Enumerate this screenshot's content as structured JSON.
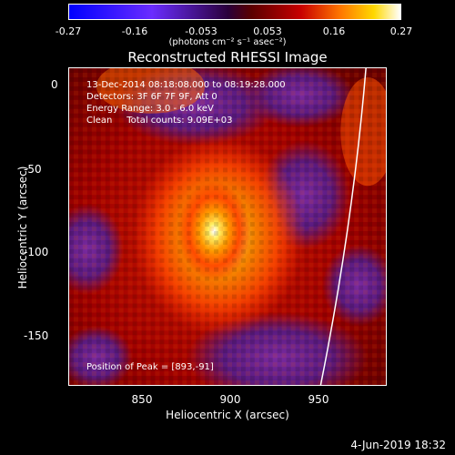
{
  "colorbar": {
    "ticks": [
      "-0.27",
      "-0.16",
      "-0.053",
      "0.053",
      "0.16",
      "0.27"
    ],
    "units": "(photons cm⁻² s⁻¹ asec⁻²)"
  },
  "title": "Reconstructed RHESSI Image",
  "info": {
    "time": "13-Dec-2014 08:18:08.000 to 08:19:28.000",
    "detectors": "Detectors: 3F 6F 7F 9F, Att 0",
    "energy": "Energy Range: 3.0 - 6.0 keV",
    "clean": "Clean     Total counts: 9.09E+03",
    "peak": "Position of Peak = [893,-91]"
  },
  "axes": {
    "xlabel": "Heliocentric X (arcsec)",
    "ylabel": "Heliocentric Y (arcsec)",
    "xticks": [
      "850",
      "900",
      "950"
    ],
    "yticks": [
      "0",
      "-50",
      "-100",
      "-150"
    ]
  },
  "footer": "4-Jun-2019 18:32"
}
